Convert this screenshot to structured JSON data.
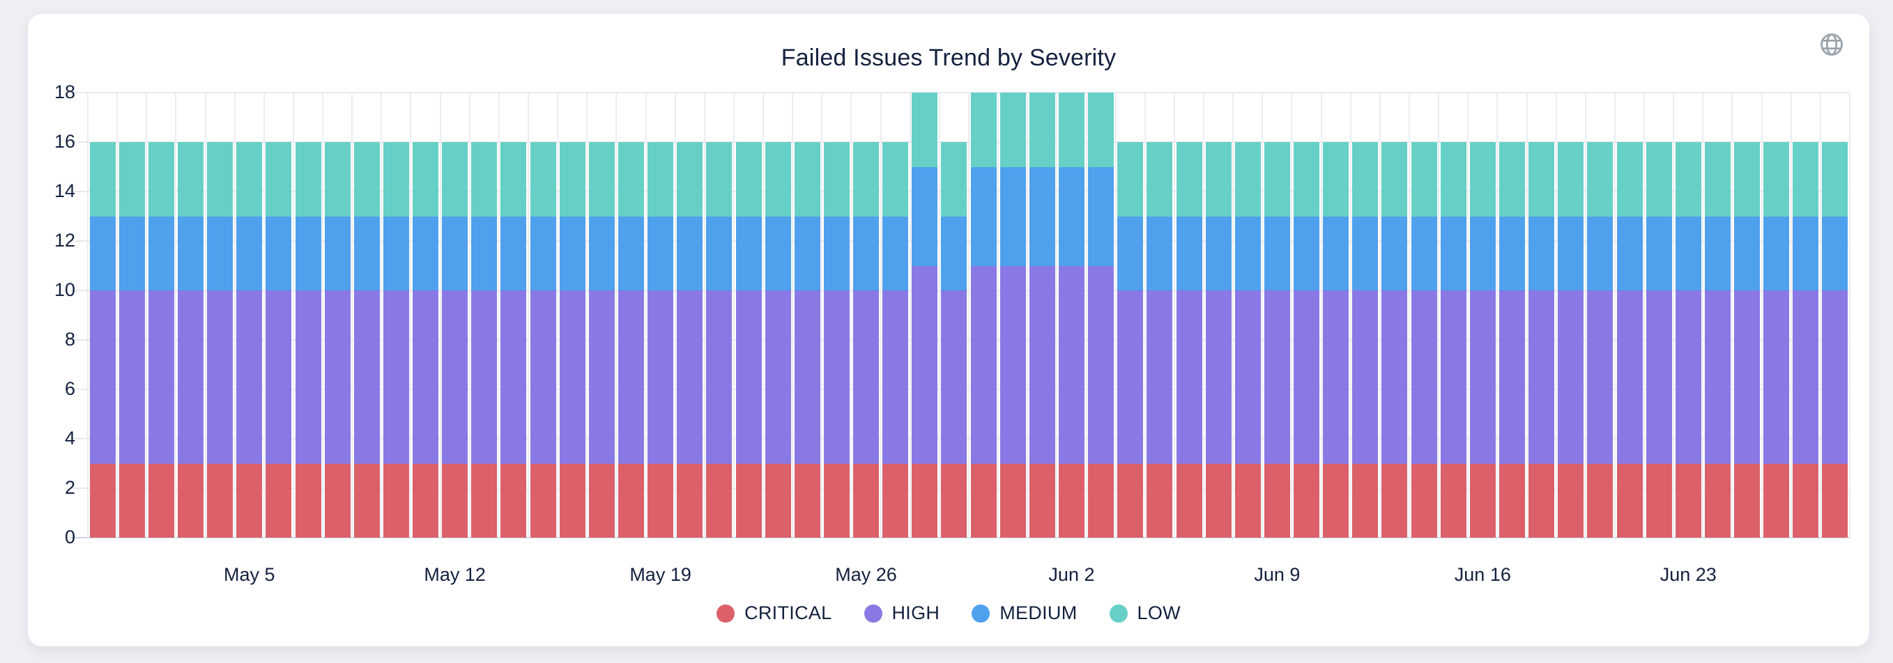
{
  "card": {
    "icons": {
      "top_right": "globe-icon"
    },
    "icon_color": "#9AA3AE"
  },
  "colors": {
    "page_background": "#edeff3",
    "card_background": "#ffffff",
    "text": "#13203E",
    "gridline": "#e9e9ed",
    "axis_line": "#ccd5e3",
    "slot_gridline": "#ededf1"
  },
  "chart_data": {
    "type": "bar",
    "stacked": true,
    "title": "Failed Issues Trend by Severity",
    "xlabel": "",
    "ylabel": "",
    "ylim": [
      0,
      18
    ],
    "y_ticks": [
      0,
      2,
      4,
      6,
      8,
      10,
      12,
      14,
      16,
      18
    ],
    "grid": "horizontal-and-vertical-slot-lines",
    "legend_position": "bottom",
    "x": [
      "Apr 30",
      "May 1",
      "May 2",
      "May 3",
      "May 4",
      "May 5",
      "May 6",
      "May 7",
      "May 8",
      "May 9",
      "May 10",
      "May 11",
      "May 12",
      "May 13",
      "May 14",
      "May 15",
      "May 16",
      "May 17",
      "May 18",
      "May 19",
      "May 20",
      "May 21",
      "May 22",
      "May 23",
      "May 24",
      "May 25",
      "May 26",
      "May 27",
      "May 28",
      "May 29",
      "May 30",
      "May 31",
      "Jun 1",
      "Jun 2",
      "Jun 3",
      "Jun 4",
      "Jun 5",
      "Jun 6",
      "Jun 7",
      "Jun 8",
      "Jun 9",
      "Jun 10",
      "Jun 11",
      "Jun 12",
      "Jun 13",
      "Jun 14",
      "Jun 15",
      "Jun 16",
      "Jun 17",
      "Jun 18",
      "Jun 19",
      "Jun 20",
      "Jun 21",
      "Jun 22",
      "Jun 23",
      "Jun 24",
      "Jun 25",
      "Jun 26",
      "Jun 27",
      "Jun 28"
    ],
    "x_tick_indices": [
      5,
      12,
      19,
      26,
      33,
      40,
      47,
      54
    ],
    "x_tick_labels": [
      "May 5",
      "May 12",
      "May 19",
      "May 26",
      "Jun 2",
      "Jun 9",
      "Jun 16",
      "Jun 23"
    ],
    "series": [
      {
        "name": "CRITICAL",
        "color": "#DB6069",
        "values": [
          3,
          3,
          3,
          3,
          3,
          3,
          3,
          3,
          3,
          3,
          3,
          3,
          3,
          3,
          3,
          3,
          3,
          3,
          3,
          3,
          3,
          3,
          3,
          3,
          3,
          3,
          3,
          3,
          3,
          3,
          3,
          3,
          3,
          3,
          3,
          3,
          3,
          3,
          3,
          3,
          3,
          3,
          3,
          3,
          3,
          3,
          3,
          3,
          3,
          3,
          3,
          3,
          3,
          3,
          3,
          3,
          3,
          3,
          3,
          3
        ]
      },
      {
        "name": "HIGH",
        "color": "#8A78E4",
        "values": [
          7,
          7,
          7,
          7,
          7,
          7,
          7,
          7,
          7,
          7,
          7,
          7,
          7,
          7,
          7,
          7,
          7,
          7,
          7,
          7,
          7,
          7,
          7,
          7,
          7,
          7,
          7,
          7,
          8,
          7,
          8,
          8,
          8,
          8,
          8,
          7,
          7,
          7,
          7,
          7,
          7,
          7,
          7,
          7,
          7,
          7,
          7,
          7,
          7,
          7,
          7,
          7,
          7,
          7,
          7,
          7,
          7,
          7,
          7,
          7
        ]
      },
      {
        "name": "MEDIUM",
        "color": "#4FA0ED",
        "values": [
          3,
          3,
          3,
          3,
          3,
          3,
          3,
          3,
          3,
          3,
          3,
          3,
          3,
          3,
          3,
          3,
          3,
          3,
          3,
          3,
          3,
          3,
          3,
          3,
          3,
          3,
          3,
          3,
          4,
          3,
          4,
          4,
          4,
          4,
          4,
          3,
          3,
          3,
          3,
          3,
          3,
          3,
          3,
          3,
          3,
          3,
          3,
          3,
          3,
          3,
          3,
          3,
          3,
          3,
          3,
          3,
          3,
          3,
          3,
          3
        ]
      },
      {
        "name": "LOW",
        "color": "#66D0C6",
        "values": [
          3,
          3,
          3,
          3,
          3,
          3,
          3,
          3,
          3,
          3,
          3,
          3,
          3,
          3,
          3,
          3,
          3,
          3,
          3,
          3,
          3,
          3,
          3,
          3,
          3,
          3,
          3,
          3,
          3,
          3,
          3,
          3,
          3,
          3,
          3,
          3,
          3,
          3,
          3,
          3,
          3,
          3,
          3,
          3,
          3,
          3,
          3,
          3,
          3,
          3,
          3,
          3,
          3,
          3,
          3,
          3,
          3,
          3,
          3,
          3
        ]
      }
    ]
  }
}
